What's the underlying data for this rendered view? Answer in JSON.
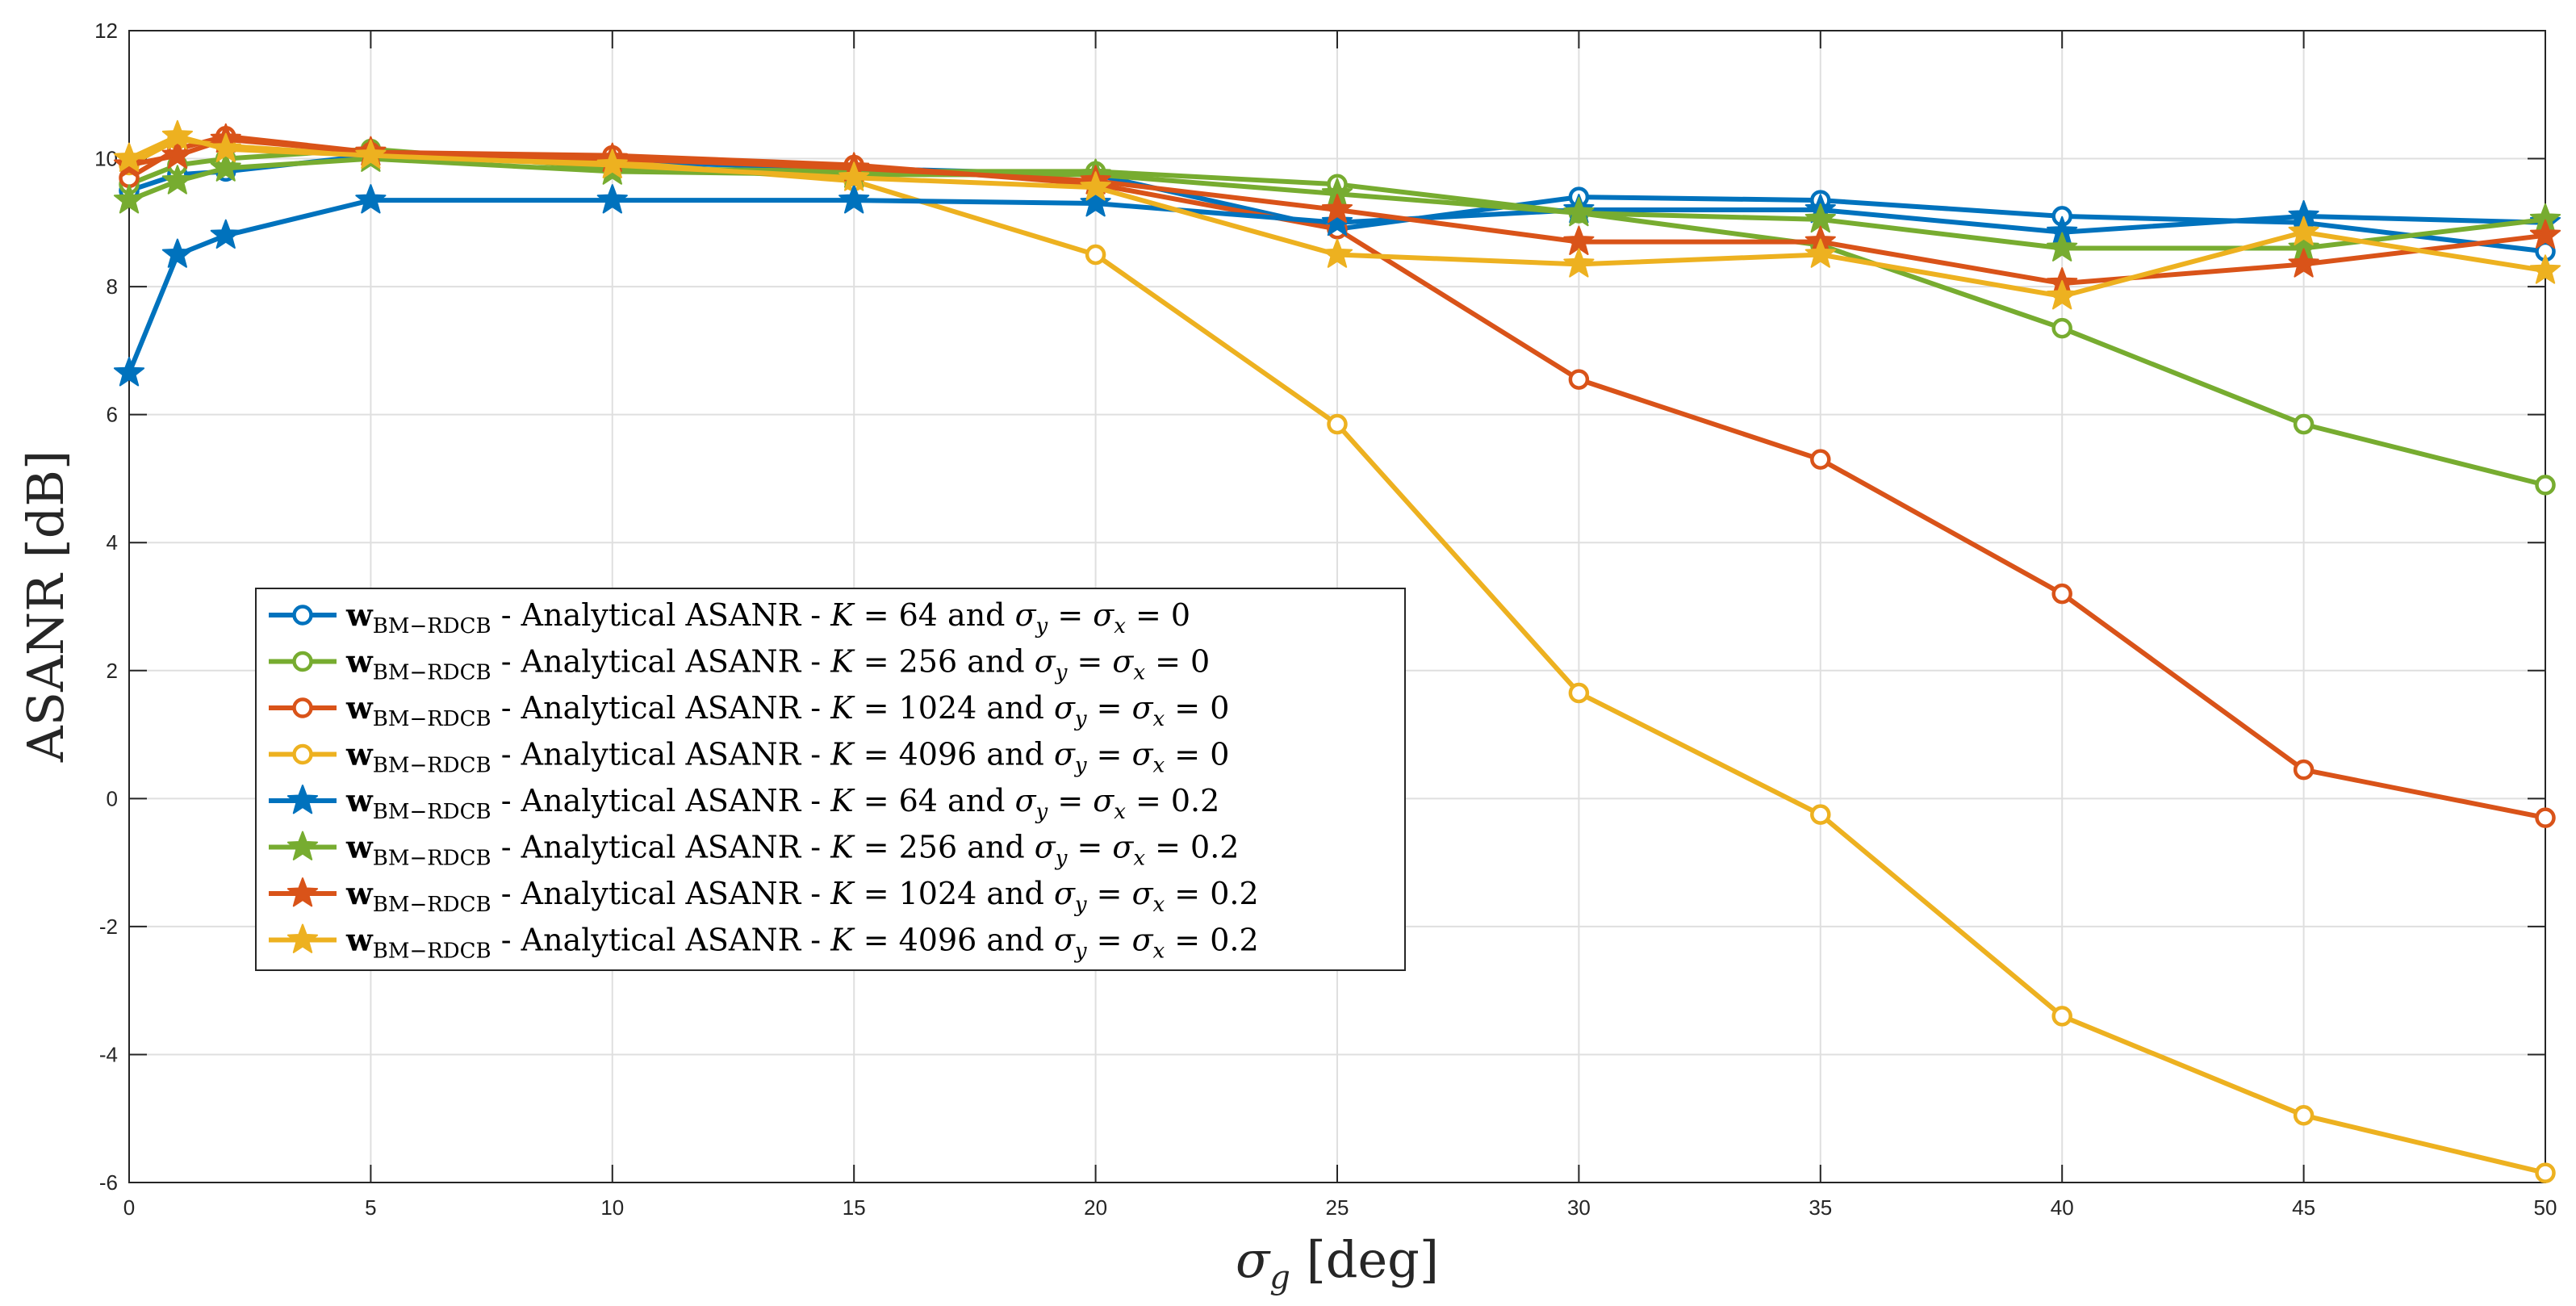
{
  "chart_data": {
    "type": "line",
    "xlabel": "σg [deg]",
    "xlabel_parts": {
      "main": "σ",
      "sub": "g",
      "rest": " [deg]"
    },
    "ylabel": "ASANR [dB]",
    "xlim": [
      0,
      50
    ],
    "ylim": [
      -6,
      12
    ],
    "xticks": [
      0,
      5,
      10,
      15,
      20,
      25,
      30,
      35,
      40,
      45,
      50
    ],
    "yticks": [
      -6,
      -4,
      -2,
      0,
      2,
      4,
      6,
      8,
      10,
      12
    ],
    "grid": true,
    "legend_position": "center-left",
    "x": [
      0,
      1,
      2,
      5,
      10,
      15,
      20,
      25,
      30,
      35,
      40,
      45,
      50
    ],
    "series": [
      {
        "name": "wBM−RDCB - Analytical ASANR - K = 64 and σy = σx = 0",
        "K": "64",
        "sigma": "0",
        "marker": "circle",
        "color": "#0072BD",
        "values": [
          9.5,
          9.75,
          9.8,
          10.05,
          9.95,
          9.85,
          9.75,
          8.9,
          9.4,
          9.35,
          9.1,
          9.0,
          8.55
        ]
      },
      {
        "name": "wBM−RDCB - Analytical ASANR - K = 256 and σy = σx = 0",
        "K": "256",
        "sigma": "0",
        "marker": "circle",
        "color": "#77AC30",
        "values": [
          9.6,
          9.9,
          10.0,
          10.15,
          9.85,
          9.8,
          9.8,
          9.6,
          9.15,
          8.65,
          7.35,
          5.85,
          4.9
        ]
      },
      {
        "name": "wBM−RDCB - Analytical ASANR - K = 1024 and σy = σx = 0",
        "K": "1024",
        "sigma": "0",
        "marker": "circle",
        "color": "#D95319",
        "values": [
          9.7,
          10.15,
          10.35,
          10.1,
          10.05,
          9.9,
          9.6,
          8.9,
          6.55,
          5.3,
          3.2,
          0.45,
          -0.3
        ]
      },
      {
        "name": "wBM−RDCB - Analytical ASANR - K = 4096 and σy = σx = 0",
        "K": "4096",
        "sigma": "0",
        "marker": "circle",
        "color": "#EDB120",
        "values": [
          9.9,
          10.3,
          10.2,
          10.05,
          9.95,
          9.65,
          8.5,
          5.85,
          1.65,
          -0.25,
          -3.4,
          -4.95,
          -5.85
        ]
      },
      {
        "name": "wBM−RDCB - Analytical ASANR - K = 64 and σy = σx = 0.2",
        "K": "64",
        "sigma": "0.2",
        "marker": "star",
        "color": "#0072BD",
        "values": [
          6.65,
          8.5,
          8.8,
          9.35,
          9.35,
          9.35,
          9.3,
          9.0,
          9.2,
          9.2,
          8.85,
          9.1,
          9.0
        ]
      },
      {
        "name": "wBM−RDCB - Analytical ASANR - K = 256 and σy = σx = 0.2",
        "K": "256",
        "sigma": "0.2",
        "marker": "star",
        "color": "#77AC30",
        "values": [
          9.35,
          9.65,
          9.85,
          10.0,
          9.8,
          9.75,
          9.75,
          9.45,
          9.15,
          9.05,
          8.6,
          8.6,
          9.05
        ]
      },
      {
        "name": "wBM−RDCB - Analytical ASANR - K = 1024 and σy = σx = 0.2",
        "K": "1024",
        "sigma": "0.2",
        "marker": "star",
        "color": "#D95319",
        "values": [
          9.9,
          10.05,
          10.3,
          10.1,
          10.0,
          9.85,
          9.65,
          9.2,
          8.7,
          8.7,
          8.05,
          8.35,
          8.8
        ]
      },
      {
        "name": "wBM−RDCB - Analytical ASANR - K = 4096 and σy = σx = 0.2",
        "K": "4096",
        "sigma": "0.2",
        "marker": "star",
        "color": "#EDB120",
        "values": [
          10.0,
          10.35,
          10.15,
          10.05,
          9.9,
          9.7,
          9.55,
          8.5,
          8.35,
          8.5,
          7.85,
          8.85,
          8.25
        ]
      }
    ]
  }
}
